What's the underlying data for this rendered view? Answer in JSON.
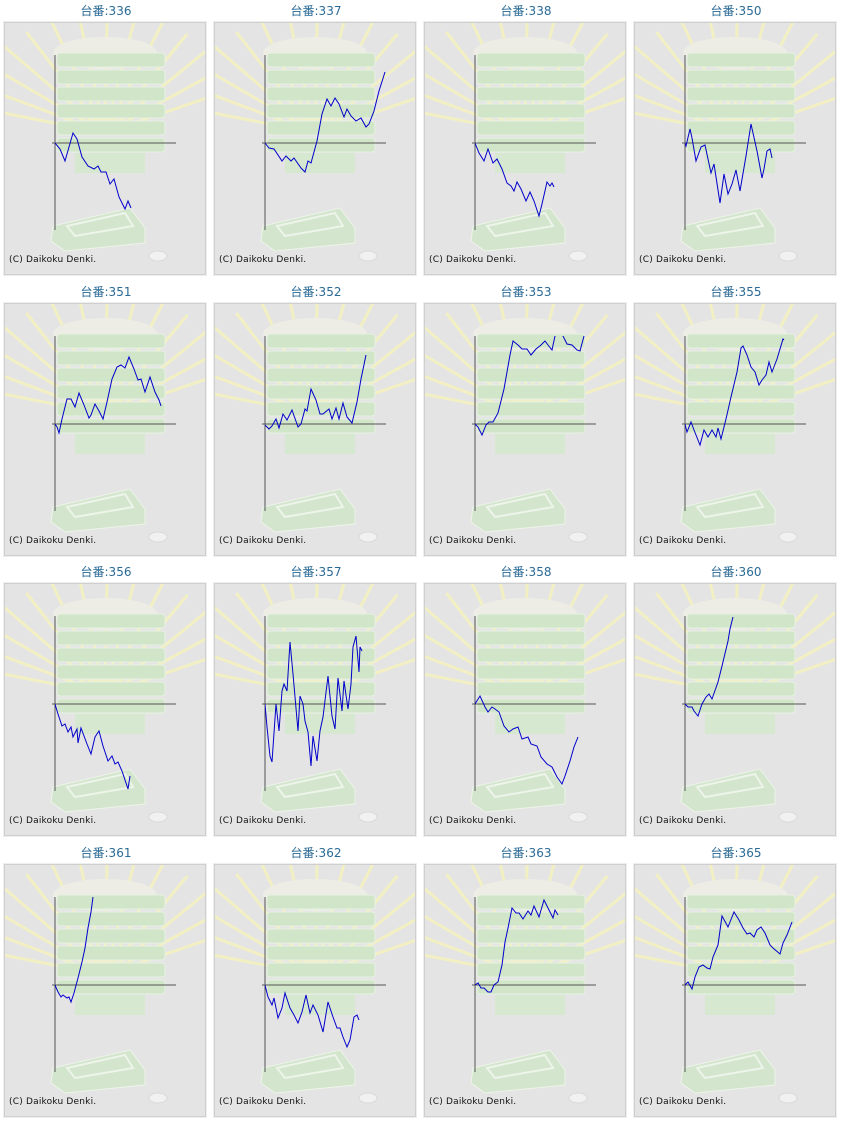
{
  "footer_text": "(C) Daikoku Denki.",
  "title_prefix": "台番:",
  "colors": {
    "line": "#0000cc",
    "axis": "#555555",
    "title": "#2a6a96",
    "panel": "#e4e4e4"
  },
  "chart_data": [
    {
      "type": "line",
      "title": "台番:336",
      "machine": "336",
      "xlim": [
        0,
        121
      ],
      "ylim": [
        -87,
        88
      ],
      "x": [
        0,
        5,
        10,
        14,
        18,
        22,
        27,
        33,
        39,
        43,
        46,
        51,
        55,
        59,
        64,
        70,
        73,
        76
      ],
      "y": [
        0,
        -6,
        -18,
        -4,
        10,
        4,
        -14,
        -23,
        -26,
        -23,
        -29,
        -29,
        -41,
        -36,
        -54,
        -66,
        -58,
        -65
      ]
    },
    {
      "type": "line",
      "title": "台番:337",
      "machine": "337",
      "xlim": [
        0,
        121
      ],
      "ylim": [
        -87,
        88
      ],
      "x": [
        0,
        4,
        9,
        17,
        21,
        26,
        29,
        36,
        40,
        43,
        46,
        52,
        57,
        62,
        66,
        70,
        74,
        79,
        82,
        86,
        91,
        96,
        101,
        104,
        109,
        114,
        120
      ],
      "y": [
        0,
        -5,
        -6,
        -18,
        -13,
        -18,
        -15,
        -25,
        -29,
        -18,
        -20,
        2,
        29,
        44,
        37,
        45,
        39,
        26,
        34,
        27,
        22,
        25,
        16,
        19,
        32,
        52,
        71
      ]
    },
    {
      "type": "line",
      "title": "台番:338",
      "machine": "338",
      "xlim": [
        0,
        121
      ],
      "ylim": [
        -87,
        88
      ],
      "x": [
        0,
        4,
        9,
        13,
        18,
        22,
        27,
        32,
        36,
        39,
        42,
        46,
        51,
        55,
        59,
        64,
        67,
        72,
        75,
        77,
        79
      ],
      "y": [
        0,
        -10,
        -18,
        -6,
        -20,
        -16,
        -26,
        -40,
        -43,
        -48,
        -39,
        -46,
        -58,
        -49,
        -58,
        -73,
        -61,
        -39,
        -43,
        -40,
        -44
      ]
    },
    {
      "type": "line",
      "title": "台番:350",
      "machine": "350",
      "xlim": [
        0,
        121
      ],
      "ylim": [
        -87,
        88
      ],
      "x": [
        0,
        1,
        5,
        7,
        11,
        16,
        20,
        26,
        29,
        35,
        39,
        43,
        47,
        51,
        55,
        61,
        66,
        72,
        77,
        79,
        82,
        85,
        87
      ],
      "y": [
        0,
        -3,
        14,
        5,
        -18,
        -4,
        -2,
        -30,
        -21,
        -60,
        -31,
        -51,
        -41,
        -27,
        -48,
        -13,
        19,
        -8,
        -35,
        -26,
        -8,
        -6,
        -15
      ]
    },
    {
      "type": "line",
      "title": "台番:351",
      "machine": "351",
      "xlim": [
        0,
        121
      ],
      "ylim": [
        -87,
        88
      ],
      "x": [
        0,
        2,
        4,
        7,
        12,
        16,
        20,
        24,
        29,
        34,
        36,
        40,
        44,
        48,
        52,
        57,
        62,
        66,
        70,
        74,
        79,
        83,
        86,
        90,
        95,
        100,
        104,
        106
      ],
      "y": [
        0,
        -3,
        -9,
        5,
        25,
        25,
        17,
        31,
        19,
        6,
        9,
        20,
        13,
        5,
        22,
        45,
        57,
        59,
        56,
        67,
        55,
        44,
        45,
        32,
        47,
        32,
        24,
        18
      ]
    },
    {
      "type": "line",
      "title": "台番:352",
      "machine": "352",
      "xlim": [
        0,
        121
      ],
      "ylim": [
        -87,
        88
      ],
      "x": [
        0,
        4,
        7,
        11,
        14,
        18,
        22,
        27,
        33,
        36,
        40,
        42,
        46,
        51,
        55,
        58,
        64,
        67,
        71,
        74,
        78,
        82,
        87,
        92,
        96,
        101
      ],
      "y": [
        -1,
        -5,
        -2,
        5,
        -4,
        10,
        4,
        14,
        -3,
        0,
        15,
        13,
        35,
        24,
        10,
        10,
        15,
        5,
        16,
        5,
        21,
        7,
        1,
        22,
        45,
        69
      ]
    },
    {
      "type": "line",
      "title": "台番:353",
      "machine": "353",
      "xlim": [
        0,
        121
      ],
      "ylim": [
        -87,
        88
      ],
      "x": [
        0,
        3,
        7,
        11,
        14,
        18,
        23,
        29,
        35,
        38,
        43,
        47,
        52,
        56,
        61,
        66,
        70,
        73,
        77,
        80,
        84,
        88,
        92,
        97,
        102,
        105,
        109
      ],
      "y": [
        0,
        -3,
        -11,
        -1,
        2,
        2,
        11,
        35,
        69,
        83,
        79,
        75,
        75,
        69,
        75,
        79,
        83,
        79,
        74,
        88,
        96,
        88,
        80,
        79,
        74,
        73,
        88
      ]
    },
    {
      "type": "line",
      "title": "台番:355",
      "machine": "355",
      "xlim": [
        0,
        121
      ],
      "ylim": [
        -87,
        88
      ],
      "x": [
        0,
        2,
        6,
        9,
        15,
        19,
        23,
        27,
        31,
        33,
        36,
        41,
        46,
        52,
        56,
        58,
        62,
        66,
        70,
        74,
        77,
        81,
        84,
        87,
        92,
        98,
        99
      ],
      "y": [
        0,
        -8,
        2,
        -6,
        -21,
        -6,
        -13,
        -6,
        -13,
        -4,
        -15,
        5,
        27,
        52,
        76,
        78,
        69,
        57,
        52,
        39,
        44,
        49,
        62,
        52,
        65,
        85,
        84
      ]
    },
    {
      "type": "line",
      "title": "台番:356",
      "machine": "356",
      "xlim": [
        0,
        121
      ],
      "ylim": [
        -87,
        88
      ],
      "x": [
        0,
        3,
        7,
        10,
        13,
        16,
        18,
        22,
        23,
        26,
        32,
        36,
        40,
        44,
        48,
        53,
        57,
        60,
        63,
        67,
        69,
        73,
        75
      ],
      "y": [
        0,
        -10,
        -22,
        -20,
        -28,
        -23,
        -33,
        -25,
        -39,
        -24,
        -40,
        -50,
        -33,
        -27,
        -42,
        -57,
        -52,
        -60,
        -58,
        -67,
        -73,
        -85,
        -72
      ]
    },
    {
      "type": "line",
      "title": "台番:357",
      "machine": "357",
      "xlim": [
        0,
        121
      ],
      "ylim": [
        -87,
        88
      ],
      "x": [
        0,
        2,
        5,
        7,
        11,
        14,
        17,
        19,
        22,
        25,
        28,
        33,
        35,
        38,
        40,
        43,
        46,
        48,
        52,
        55,
        58,
        63,
        67,
        70,
        73,
        77,
        79,
        83,
        86,
        88,
        91,
        94,
        95,
        97
      ],
      "y": [
        0,
        -23,
        -52,
        -58,
        0,
        -27,
        13,
        20,
        13,
        62,
        30,
        -27,
        8,
        0,
        -17,
        -28,
        -62,
        -32,
        -57,
        -27,
        -13,
        28,
        -12,
        -25,
        26,
        -7,
        23,
        -5,
        20,
        57,
        68,
        32,
        57,
        53
      ]
    },
    {
      "type": "line",
      "title": "台番:358",
      "machine": "358",
      "xlim": [
        0,
        121
      ],
      "ylim": [
        -87,
        88
      ],
      "x": [
        0,
        5,
        10,
        13,
        17,
        20,
        24,
        29,
        34,
        38,
        43,
        47,
        53,
        56,
        62,
        66,
        72,
        77,
        82,
        87,
        90,
        95,
        99,
        103
      ],
      "y": [
        0,
        8,
        -3,
        -8,
        -3,
        -5,
        -8,
        -22,
        -28,
        -25,
        -23,
        -35,
        -33,
        -40,
        -42,
        -53,
        -60,
        -63,
        -73,
        -80,
        -72,
        -57,
        -43,
        -33
      ]
    },
    {
      "type": "line",
      "title": "台番:360",
      "machine": "360",
      "xlim": [
        0,
        121
      ],
      "ylim": [
        -87,
        88
      ],
      "x": [
        0,
        3,
        7,
        9,
        13,
        17,
        21,
        24,
        27,
        33,
        37,
        43,
        45,
        48
      ],
      "y": [
        0,
        -3,
        -3,
        -7,
        -12,
        0,
        7,
        10,
        5,
        22,
        38,
        63,
        75,
        87
      ]
    },
    {
      "type": "line",
      "title": "台番:361",
      "machine": "361",
      "xlim": [
        0,
        121
      ],
      "ylim": [
        -87,
        88
      ],
      "x": [
        0,
        3,
        6,
        8,
        12,
        14,
        16,
        19,
        23,
        27,
        30,
        33,
        36,
        38
      ],
      "y": [
        0,
        -7,
        -12,
        -10,
        -13,
        -12,
        -17,
        -8,
        7,
        23,
        37,
        57,
        73,
        88
      ]
    },
    {
      "type": "line",
      "title": "台番:362",
      "machine": "362",
      "xlim": [
        0,
        121
      ],
      "ylim": [
        -87,
        88
      ],
      "x": [
        0,
        3,
        7,
        9,
        13,
        17,
        20,
        25,
        29,
        33,
        37,
        41,
        45,
        48,
        53,
        58,
        63,
        68,
        72,
        75,
        78,
        82,
        85,
        89,
        92,
        94
      ],
      "y": [
        0,
        -12,
        -20,
        -13,
        -33,
        -23,
        -8,
        -23,
        -30,
        -38,
        -27,
        -10,
        -28,
        -20,
        -30,
        -47,
        -17,
        -32,
        -43,
        -43,
        -52,
        -62,
        -55,
        -32,
        -30,
        -35
      ]
    },
    {
      "type": "line",
      "title": "台番:363",
      "machine": "363",
      "xlim": [
        0,
        121
      ],
      "ylim": [
        -87,
        88
      ],
      "x": [
        0,
        3,
        6,
        9,
        13,
        16,
        19,
        23,
        27,
        30,
        33,
        37,
        41,
        44,
        48,
        53,
        56,
        59,
        64,
        69,
        73,
        78,
        80,
        83
      ],
      "y": [
        0,
        2,
        -3,
        -3,
        -7,
        -7,
        0,
        3,
        20,
        43,
        57,
        77,
        72,
        72,
        66,
        74,
        70,
        79,
        68,
        85,
        77,
        67,
        75,
        70
      ]
    },
    {
      "type": "line",
      "title": "台番:365",
      "machine": "365",
      "xlim": [
        0,
        121
      ],
      "ylim": [
        -87,
        88
      ],
      "x": [
        0,
        3,
        7,
        10,
        14,
        18,
        22,
        25,
        28,
        33,
        37,
        43,
        49,
        54,
        58,
        62,
        65,
        69,
        72,
        76,
        80,
        85,
        88,
        95,
        98,
        102,
        107
      ],
      "y": [
        0,
        3,
        -4,
        8,
        18,
        20,
        17,
        16,
        28,
        40,
        69,
        58,
        73,
        65,
        57,
        51,
        52,
        48,
        55,
        58,
        52,
        40,
        37,
        31,
        42,
        50,
        63
      ]
    }
  ]
}
